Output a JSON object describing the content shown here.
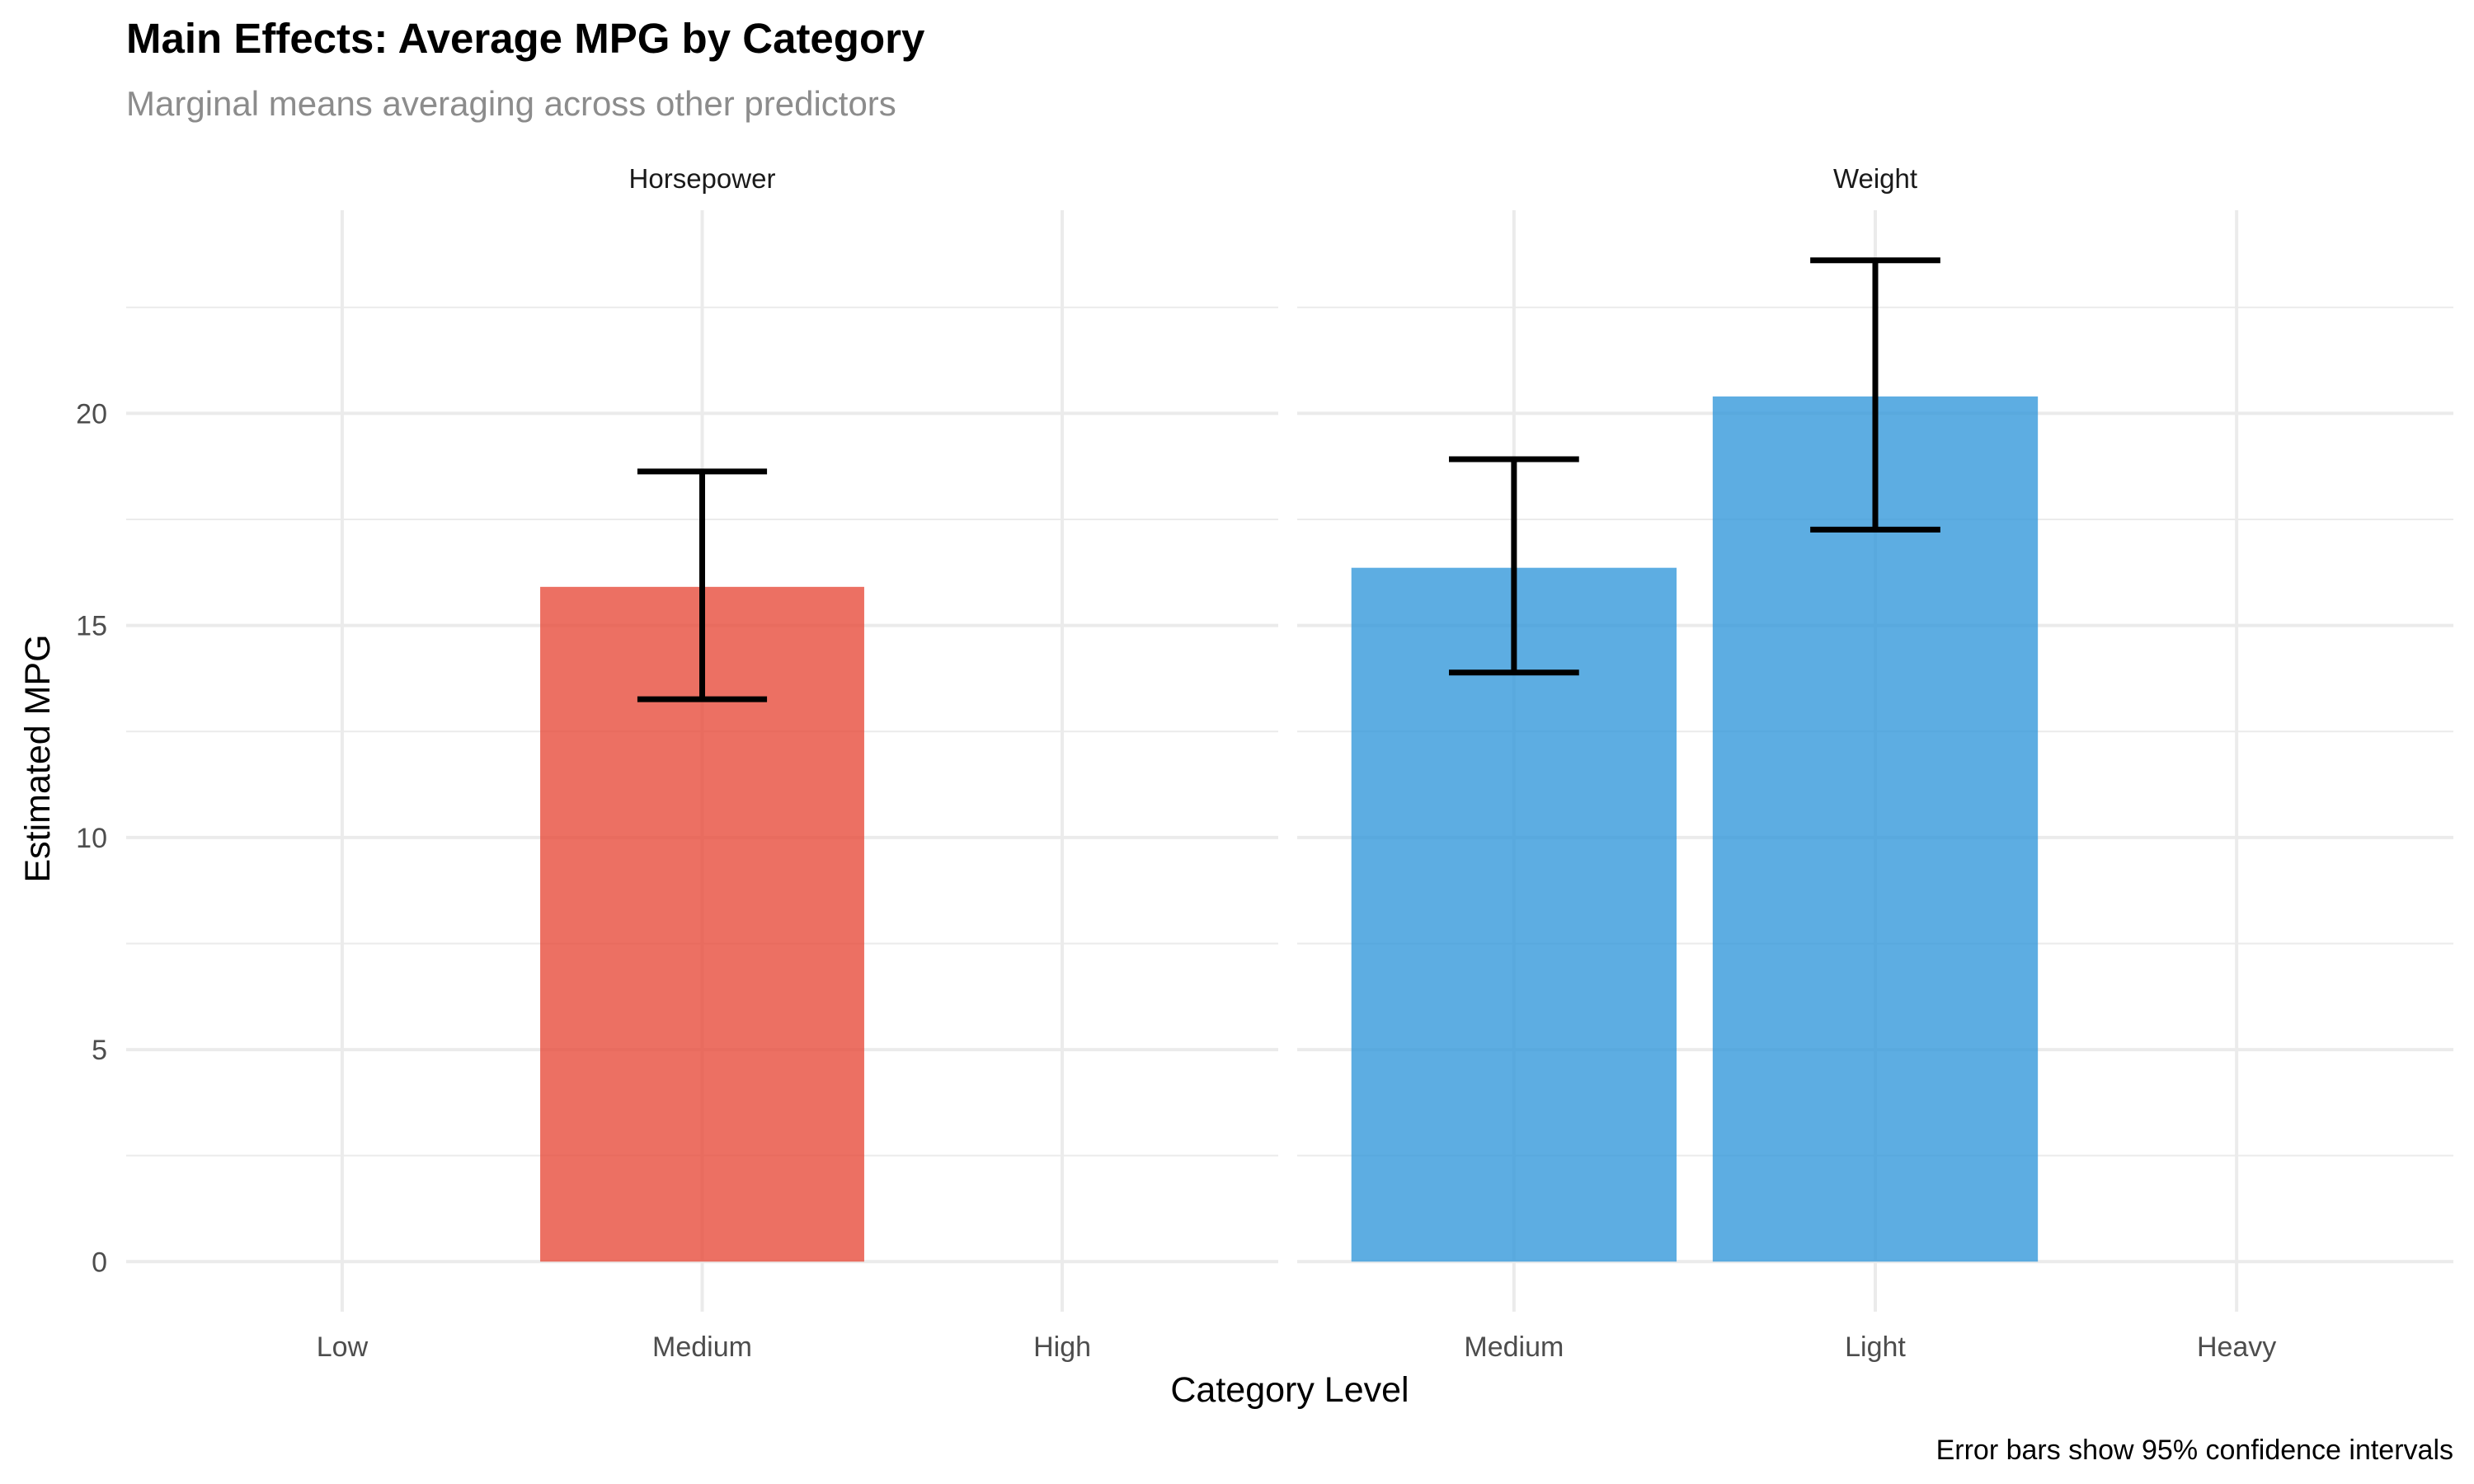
{
  "chart_data": {
    "type": "bar",
    "title": "Main Effects: Average MPG by Category",
    "subtitle": "Marginal means averaging across other predictors",
    "xlabel": "Category Level",
    "ylabel": "Estimated MPG",
    "caption": "Error bars show 95% confidence intervals",
    "ylim": [
      0,
      23.61
    ],
    "yticks": [
      0,
      5,
      10,
      15,
      20
    ],
    "grid": true,
    "facets": [
      {
        "name": "Horsepower",
        "color": "#E74C3C",
        "categories": [
          "Low",
          "Medium",
          "High"
        ],
        "values": [
          null,
          15.91,
          null
        ],
        "ci_lower": [
          null,
          13.26,
          null
        ],
        "ci_upper": [
          null,
          18.63,
          null
        ]
      },
      {
        "name": "Weight",
        "color": "#3498DB",
        "categories": [
          "Medium",
          "Light",
          "Heavy"
        ],
        "values": [
          16.36,
          20.4,
          null
        ],
        "ci_lower": [
          13.89,
          17.26,
          null
        ],
        "ci_upper": [
          18.92,
          23.61,
          null
        ]
      }
    ]
  }
}
